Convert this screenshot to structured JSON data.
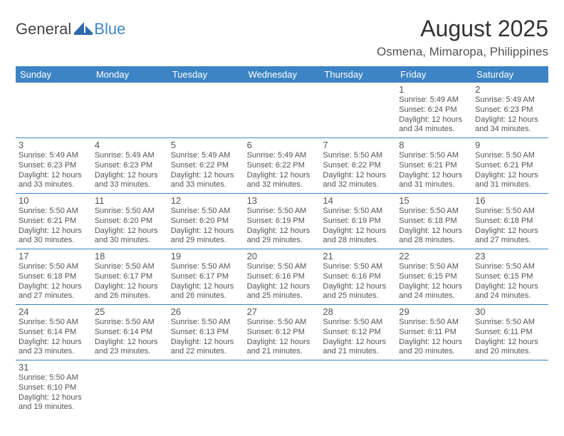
{
  "logo": {
    "text_dark": "General",
    "text_blue": "Blue"
  },
  "title": "August 2025",
  "location": "Osmena, Mimaropa, Philippines",
  "colors": {
    "header_bg": "#3d84c4",
    "header_text": "#ffffff",
    "row_border": "#3d84c4",
    "text": "#555555",
    "logo_blue": "#4186c6"
  },
  "weekdays": [
    "Sunday",
    "Monday",
    "Tuesday",
    "Wednesday",
    "Thursday",
    "Friday",
    "Saturday"
  ],
  "weeks": [
    [
      null,
      null,
      null,
      null,
      null,
      {
        "n": "1",
        "sr": "Sunrise: 5:49 AM",
        "ss": "Sunset: 6:24 PM",
        "d1": "Daylight: 12 hours",
        "d2": "and 34 minutes."
      },
      {
        "n": "2",
        "sr": "Sunrise: 5:49 AM",
        "ss": "Sunset: 6:23 PM",
        "d1": "Daylight: 12 hours",
        "d2": "and 34 minutes."
      }
    ],
    [
      {
        "n": "3",
        "sr": "Sunrise: 5:49 AM",
        "ss": "Sunset: 6:23 PM",
        "d1": "Daylight: 12 hours",
        "d2": "and 33 minutes."
      },
      {
        "n": "4",
        "sr": "Sunrise: 5:49 AM",
        "ss": "Sunset: 6:23 PM",
        "d1": "Daylight: 12 hours",
        "d2": "and 33 minutes."
      },
      {
        "n": "5",
        "sr": "Sunrise: 5:49 AM",
        "ss": "Sunset: 6:22 PM",
        "d1": "Daylight: 12 hours",
        "d2": "and 33 minutes."
      },
      {
        "n": "6",
        "sr": "Sunrise: 5:49 AM",
        "ss": "Sunset: 6:22 PM",
        "d1": "Daylight: 12 hours",
        "d2": "and 32 minutes."
      },
      {
        "n": "7",
        "sr": "Sunrise: 5:50 AM",
        "ss": "Sunset: 6:22 PM",
        "d1": "Daylight: 12 hours",
        "d2": "and 32 minutes."
      },
      {
        "n": "8",
        "sr": "Sunrise: 5:50 AM",
        "ss": "Sunset: 6:21 PM",
        "d1": "Daylight: 12 hours",
        "d2": "and 31 minutes."
      },
      {
        "n": "9",
        "sr": "Sunrise: 5:50 AM",
        "ss": "Sunset: 6:21 PM",
        "d1": "Daylight: 12 hours",
        "d2": "and 31 minutes."
      }
    ],
    [
      {
        "n": "10",
        "sr": "Sunrise: 5:50 AM",
        "ss": "Sunset: 6:21 PM",
        "d1": "Daylight: 12 hours",
        "d2": "and 30 minutes."
      },
      {
        "n": "11",
        "sr": "Sunrise: 5:50 AM",
        "ss": "Sunset: 6:20 PM",
        "d1": "Daylight: 12 hours",
        "d2": "and 30 minutes."
      },
      {
        "n": "12",
        "sr": "Sunrise: 5:50 AM",
        "ss": "Sunset: 6:20 PM",
        "d1": "Daylight: 12 hours",
        "d2": "and 29 minutes."
      },
      {
        "n": "13",
        "sr": "Sunrise: 5:50 AM",
        "ss": "Sunset: 6:19 PM",
        "d1": "Daylight: 12 hours",
        "d2": "and 29 minutes."
      },
      {
        "n": "14",
        "sr": "Sunrise: 5:50 AM",
        "ss": "Sunset: 6:19 PM",
        "d1": "Daylight: 12 hours",
        "d2": "and 28 minutes."
      },
      {
        "n": "15",
        "sr": "Sunrise: 5:50 AM",
        "ss": "Sunset: 6:18 PM",
        "d1": "Daylight: 12 hours",
        "d2": "and 28 minutes."
      },
      {
        "n": "16",
        "sr": "Sunrise: 5:50 AM",
        "ss": "Sunset: 6:18 PM",
        "d1": "Daylight: 12 hours",
        "d2": "and 27 minutes."
      }
    ],
    [
      {
        "n": "17",
        "sr": "Sunrise: 5:50 AM",
        "ss": "Sunset: 6:18 PM",
        "d1": "Daylight: 12 hours",
        "d2": "and 27 minutes."
      },
      {
        "n": "18",
        "sr": "Sunrise: 5:50 AM",
        "ss": "Sunset: 6:17 PM",
        "d1": "Daylight: 12 hours",
        "d2": "and 26 minutes."
      },
      {
        "n": "19",
        "sr": "Sunrise: 5:50 AM",
        "ss": "Sunset: 6:17 PM",
        "d1": "Daylight: 12 hours",
        "d2": "and 26 minutes."
      },
      {
        "n": "20",
        "sr": "Sunrise: 5:50 AM",
        "ss": "Sunset: 6:16 PM",
        "d1": "Daylight: 12 hours",
        "d2": "and 25 minutes."
      },
      {
        "n": "21",
        "sr": "Sunrise: 5:50 AM",
        "ss": "Sunset: 6:16 PM",
        "d1": "Daylight: 12 hours",
        "d2": "and 25 minutes."
      },
      {
        "n": "22",
        "sr": "Sunrise: 5:50 AM",
        "ss": "Sunset: 6:15 PM",
        "d1": "Daylight: 12 hours",
        "d2": "and 24 minutes."
      },
      {
        "n": "23",
        "sr": "Sunrise: 5:50 AM",
        "ss": "Sunset: 6:15 PM",
        "d1": "Daylight: 12 hours",
        "d2": "and 24 minutes."
      }
    ],
    [
      {
        "n": "24",
        "sr": "Sunrise: 5:50 AM",
        "ss": "Sunset: 6:14 PM",
        "d1": "Daylight: 12 hours",
        "d2": "and 23 minutes."
      },
      {
        "n": "25",
        "sr": "Sunrise: 5:50 AM",
        "ss": "Sunset: 6:14 PM",
        "d1": "Daylight: 12 hours",
        "d2": "and 23 minutes."
      },
      {
        "n": "26",
        "sr": "Sunrise: 5:50 AM",
        "ss": "Sunset: 6:13 PM",
        "d1": "Daylight: 12 hours",
        "d2": "and 22 minutes."
      },
      {
        "n": "27",
        "sr": "Sunrise: 5:50 AM",
        "ss": "Sunset: 6:12 PM",
        "d1": "Daylight: 12 hours",
        "d2": "and 21 minutes."
      },
      {
        "n": "28",
        "sr": "Sunrise: 5:50 AM",
        "ss": "Sunset: 6:12 PM",
        "d1": "Daylight: 12 hours",
        "d2": "and 21 minutes."
      },
      {
        "n": "29",
        "sr": "Sunrise: 5:50 AM",
        "ss": "Sunset: 6:11 PM",
        "d1": "Daylight: 12 hours",
        "d2": "and 20 minutes."
      },
      {
        "n": "30",
        "sr": "Sunrise: 5:50 AM",
        "ss": "Sunset: 6:11 PM",
        "d1": "Daylight: 12 hours",
        "d2": "and 20 minutes."
      }
    ],
    [
      {
        "n": "31",
        "sr": "Sunrise: 5:50 AM",
        "ss": "Sunset: 6:10 PM",
        "d1": "Daylight: 12 hours",
        "d2": "and 19 minutes."
      },
      null,
      null,
      null,
      null,
      null,
      null
    ]
  ]
}
